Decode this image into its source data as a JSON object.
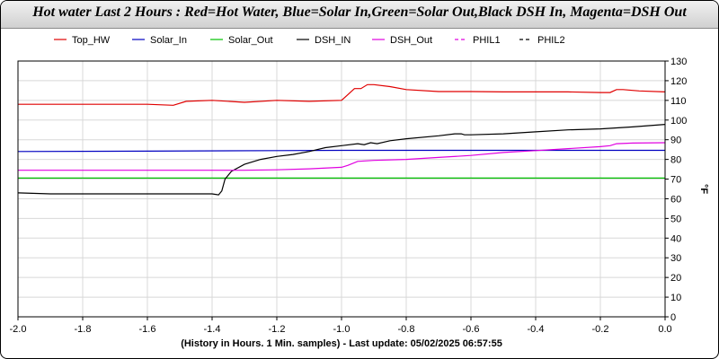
{
  "title": "Hot water Last 2 Hours : Red=Hot Water, Blue=Solar In,Green=Solar Out,Black DSH In, Magenta=DSH Out",
  "chart_data": {
    "type": "line",
    "xlabel": "(History in Hours. 1 Min. samples) - Last update: 05/02/2025 06:57:55",
    "ylabel": "°F",
    "xlim": [
      -2.0,
      0.0
    ],
    "ylim": [
      0,
      130
    ],
    "x_ticks": [
      -2.0,
      -1.8,
      -1.6,
      -1.4,
      -1.2,
      -1.0,
      -0.8,
      -0.6,
      -0.4,
      -0.2,
      0.0
    ],
    "x_tick_labels": [
      "-2.0",
      "-1.8",
      "-1.6",
      "-1.4",
      "-1.2",
      "-1.0",
      "-0.8",
      "-0.6",
      "-0.4",
      "-0.2",
      "0.0"
    ],
    "y_ticks": [
      0,
      10,
      20,
      30,
      40,
      50,
      60,
      70,
      80,
      90,
      100,
      110,
      120,
      130
    ],
    "grid": true,
    "legend_position": "top",
    "series": [
      {
        "name": "Top_HW",
        "color": "#e00000",
        "dash": "solid",
        "points": [
          [
            -2.0,
            108
          ],
          [
            -1.8,
            108
          ],
          [
            -1.6,
            108
          ],
          [
            -1.52,
            107.5
          ],
          [
            -1.48,
            109.5
          ],
          [
            -1.4,
            110
          ],
          [
            -1.3,
            109
          ],
          [
            -1.2,
            110
          ],
          [
            -1.1,
            109.5
          ],
          [
            -1.0,
            110
          ],
          [
            -0.98,
            113
          ],
          [
            -0.96,
            116
          ],
          [
            -0.94,
            116
          ],
          [
            -0.92,
            118
          ],
          [
            -0.9,
            118
          ],
          [
            -0.85,
            117
          ],
          [
            -0.8,
            115.5
          ],
          [
            -0.7,
            114.5
          ],
          [
            -0.6,
            114.5
          ],
          [
            -0.5,
            114.3
          ],
          [
            -0.4,
            114.3
          ],
          [
            -0.3,
            114.3
          ],
          [
            -0.2,
            114
          ],
          [
            -0.17,
            114
          ],
          [
            -0.15,
            115.5
          ],
          [
            -0.13,
            115.5
          ],
          [
            -0.08,
            114.8
          ],
          [
            0.0,
            114.3
          ]
        ]
      },
      {
        "name": "Solar_In",
        "color": "#0000c0",
        "dash": "solid",
        "points": [
          [
            -2.0,
            84
          ],
          [
            -1.6,
            84.2
          ],
          [
            -1.2,
            84.5
          ],
          [
            -1.0,
            84.6
          ],
          [
            -0.6,
            84.6
          ],
          [
            -0.2,
            84.6
          ],
          [
            0.0,
            84.6
          ]
        ]
      },
      {
        "name": "Solar_Out",
        "color": "#00c000",
        "dash": "solid",
        "points": [
          [
            -2.0,
            70.5
          ],
          [
            -1.0,
            70.5
          ],
          [
            0.0,
            70.5
          ]
        ]
      },
      {
        "name": "DSH_IN",
        "color": "#000000",
        "dash": "solid",
        "points": [
          [
            -2.0,
            63
          ],
          [
            -1.9,
            62.5
          ],
          [
            -1.6,
            62.5
          ],
          [
            -1.4,
            62.5
          ],
          [
            -1.38,
            62
          ],
          [
            -1.37,
            64
          ],
          [
            -1.36,
            70
          ],
          [
            -1.34,
            74
          ],
          [
            -1.3,
            77.5
          ],
          [
            -1.25,
            80
          ],
          [
            -1.2,
            81.5
          ],
          [
            -1.15,
            82.5
          ],
          [
            -1.1,
            84
          ],
          [
            -1.05,
            86
          ],
          [
            -1.0,
            87
          ],
          [
            -0.95,
            88
          ],
          [
            -0.93,
            87.5
          ],
          [
            -0.91,
            88.5
          ],
          [
            -0.89,
            88
          ],
          [
            -0.85,
            89.5
          ],
          [
            -0.8,
            90.5
          ],
          [
            -0.7,
            92
          ],
          [
            -0.65,
            93
          ],
          [
            -0.63,
            93
          ],
          [
            -0.62,
            92.5
          ],
          [
            -0.6,
            92.5
          ],
          [
            -0.5,
            93
          ],
          [
            -0.4,
            94
          ],
          [
            -0.3,
            95
          ],
          [
            -0.2,
            95.5
          ],
          [
            -0.1,
            96.5
          ],
          [
            0.0,
            97.8
          ]
        ]
      },
      {
        "name": "DSH_Out",
        "color": "#e000e0",
        "dash": "solid",
        "points": [
          [
            -2.0,
            74.5
          ],
          [
            -1.6,
            74.5
          ],
          [
            -1.3,
            74.5
          ],
          [
            -1.2,
            74.7
          ],
          [
            -1.1,
            75.2
          ],
          [
            -1.0,
            76
          ],
          [
            -0.98,
            77
          ],
          [
            -0.95,
            79
          ],
          [
            -0.9,
            79.5
          ],
          [
            -0.8,
            80
          ],
          [
            -0.7,
            81
          ],
          [
            -0.6,
            82
          ],
          [
            -0.5,
            83.5
          ],
          [
            -0.4,
            84.5
          ],
          [
            -0.3,
            85.5
          ],
          [
            -0.2,
            86.5
          ],
          [
            -0.17,
            87
          ],
          [
            -0.15,
            88
          ],
          [
            -0.1,
            88.3
          ],
          [
            0.0,
            88.5
          ]
        ]
      },
      {
        "name": "PHIL1",
        "color": "#e000e0",
        "dash": "dashed",
        "points": []
      },
      {
        "name": "PHIL2",
        "color": "#000000",
        "dash": "dashed",
        "points": []
      }
    ]
  }
}
